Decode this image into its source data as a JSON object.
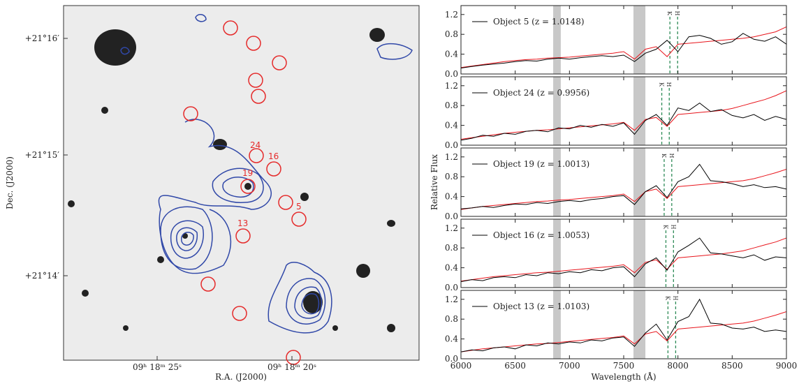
{
  "chart_data": [
    {
      "type": "image",
      "xlabel": "R.A. (J2000)",
      "ylabel": "Dec. (J2000)",
      "xtick_labels": [
        "09ʰ 18ᵐ 25ˢ",
        "09ʰ 18ᵐ 20ˢ"
      ],
      "ytick_labels": [
        "+21°16′",
        "+21°15′",
        "+21°14′"
      ],
      "object_labels": [
        "24",
        "16",
        "19",
        "5",
        "13"
      ]
    },
    {
      "type": "line",
      "ylim": [
        0,
        1.38
      ],
      "yticks": [
        {
          "value": 0,
          "label": "0.0"
        },
        0.4,
        0.8,
        1.2
      ],
      "xlim": [
        6000,
        9000
      ],
      "x": [
        6000,
        6100,
        6200,
        6300,
        6400,
        6500,
        6600,
        6700,
        6800,
        6900,
        7000,
        7100,
        7200,
        7300,
        7400,
        7500,
        7600,
        7700,
        7800,
        7900,
        8000,
        8100,
        8200,
        8300,
        8400,
        8500,
        8600,
        8700,
        8800,
        8900,
        9000
      ],
      "shaded_bands": [
        [
          6850,
          6920
        ],
        [
          7590,
          7700
        ]
      ],
      "lines": [
        {
          "label": "K",
          "x": 7926
        },
        {
          "label": "H",
          "x": 7997
        }
      ],
      "series": [
        {
          "name": "Object 5 (z = 1.0148)",
          "color": "#000000",
          "values": [
            0.12,
            0.15,
            0.18,
            0.2,
            0.22,
            0.25,
            0.27,
            0.26,
            0.3,
            0.32,
            0.3,
            0.33,
            0.35,
            0.37,
            0.35,
            0.38,
            0.25,
            0.42,
            0.5,
            0.68,
            0.45,
            0.75,
            0.78,
            0.72,
            0.6,
            0.65,
            0.82,
            0.7,
            0.66,
            0.75,
            0.6
          ]
        },
        {
          "color": "#e8141b",
          "values": [
            0.13,
            0.16,
            0.19,
            0.22,
            0.25,
            0.27,
            0.29,
            0.3,
            0.32,
            0.33,
            0.34,
            0.36,
            0.38,
            0.4,
            0.42,
            0.45,
            0.3,
            0.5,
            0.55,
            0.35,
            0.6,
            0.62,
            0.64,
            0.66,
            0.68,
            0.7,
            0.72,
            0.75,
            0.8,
            0.85,
            0.95
          ]
        }
      ]
    },
    {
      "type": "line",
      "ylim": [
        0,
        1.38
      ],
      "yticks": [
        {
          "value": 0,
          "label": "0.0"
        },
        0.4,
        0.8,
        1.2
      ],
      "xlim": [
        6000,
        9000
      ],
      "x": [
        6000,
        6100,
        6200,
        6300,
        6400,
        6500,
        6600,
        6700,
        6800,
        6900,
        7000,
        7100,
        7200,
        7300,
        7400,
        7500,
        7600,
        7700,
        7800,
        7900,
        8000,
        8100,
        8200,
        8300,
        8400,
        8500,
        8600,
        8700,
        8800,
        8900,
        9000
      ],
      "shaded_bands": [
        [
          6850,
          6920
        ],
        [
          7590,
          7700
        ]
      ],
      "lines": [
        {
          "label": "K",
          "x": 7851
        },
        {
          "label": "H",
          "x": 7920
        }
      ],
      "series": [
        {
          "name": "Object 24 (z = 0.9956)",
          "color": "#000000",
          "values": [
            0.1,
            0.14,
            0.2,
            0.18,
            0.24,
            0.22,
            0.28,
            0.3,
            0.27,
            0.35,
            0.33,
            0.4,
            0.36,
            0.42,
            0.38,
            0.45,
            0.22,
            0.5,
            0.62,
            0.4,
            0.75,
            0.7,
            0.85,
            0.68,
            0.72,
            0.6,
            0.55,
            0.62,
            0.5,
            0.58,
            0.52
          ]
        },
        {
          "color": "#e8141b",
          "values": [
            0.12,
            0.15,
            0.18,
            0.21,
            0.24,
            0.26,
            0.28,
            0.3,
            0.31,
            0.33,
            0.35,
            0.37,
            0.39,
            0.41,
            0.43,
            0.46,
            0.3,
            0.52,
            0.56,
            0.38,
            0.62,
            0.64,
            0.66,
            0.68,
            0.7,
            0.74,
            0.8,
            0.86,
            0.92,
            1.0,
            1.1
          ]
        }
      ]
    },
    {
      "type": "line",
      "ylim": [
        0,
        1.38
      ],
      "yticks": [
        {
          "value": 0,
          "label": "0.0"
        },
        0.4,
        0.8,
        1.2
      ],
      "xlim": [
        6000,
        9000
      ],
      "ylabel": "Relative Flux",
      "x": [
        6000,
        6100,
        6200,
        6300,
        6400,
        6500,
        6600,
        6700,
        6800,
        6900,
        7000,
        7100,
        7200,
        7300,
        7400,
        7500,
        7600,
        7700,
        7800,
        7900,
        8000,
        8100,
        8200,
        8300,
        8400,
        8500,
        8600,
        8700,
        8800,
        8900,
        9000
      ],
      "shaded_bands": [
        [
          6850,
          6920
        ],
        [
          7590,
          7700
        ]
      ],
      "lines": [
        {
          "label": "K",
          "x": 7873
        },
        {
          "label": "H",
          "x": 7943
        }
      ],
      "series": [
        {
          "name": "Object 19 (z = 1.0013)",
          "color": "#000000",
          "values": [
            0.15,
            0.17,
            0.2,
            0.18,
            0.22,
            0.25,
            0.24,
            0.28,
            0.26,
            0.3,
            0.32,
            0.3,
            0.34,
            0.36,
            0.4,
            0.42,
            0.24,
            0.5,
            0.62,
            0.38,
            0.7,
            0.8,
            1.05,
            0.72,
            0.7,
            0.66,
            0.6,
            0.64,
            0.58,
            0.6,
            0.55
          ]
        },
        {
          "color": "#e8141b",
          "values": [
            0.14,
            0.17,
            0.2,
            0.22,
            0.24,
            0.26,
            0.28,
            0.3,
            0.31,
            0.33,
            0.34,
            0.36,
            0.38,
            0.4,
            0.42,
            0.45,
            0.3,
            0.5,
            0.55,
            0.36,
            0.6,
            0.62,
            0.64,
            0.66,
            0.68,
            0.7,
            0.72,
            0.76,
            0.82,
            0.88,
            0.95
          ]
        }
      ]
    },
    {
      "type": "line",
      "ylim": [
        0,
        1.38
      ],
      "yticks": [
        {
          "value": 0,
          "label": "0.0"
        },
        0.4,
        0.8,
        1.2
      ],
      "xlim": [
        6000,
        9000
      ],
      "x": [
        6000,
        6100,
        6200,
        6300,
        6400,
        6500,
        6600,
        6700,
        6800,
        6900,
        7000,
        7100,
        7200,
        7300,
        7400,
        7500,
        7600,
        7700,
        7800,
        7900,
        8000,
        8100,
        8200,
        8300,
        8400,
        8500,
        8600,
        8700,
        8800,
        8900,
        9000
      ],
      "shaded_bands": [
        [
          6850,
          6920
        ],
        [
          7590,
          7700
        ]
      ],
      "lines": [
        {
          "label": "K",
          "x": 7889
        },
        {
          "label": "H",
          "x": 7959
        }
      ],
      "series": [
        {
          "name": "Object 16 (z = 1.0053)",
          "color": "#000000",
          "values": [
            0.12,
            0.16,
            0.14,
            0.2,
            0.22,
            0.2,
            0.26,
            0.24,
            0.3,
            0.28,
            0.32,
            0.3,
            0.36,
            0.34,
            0.4,
            0.42,
            0.22,
            0.48,
            0.6,
            0.35,
            0.72,
            0.85,
            1.0,
            0.7,
            0.68,
            0.64,
            0.6,
            0.66,
            0.55,
            0.62,
            0.6
          ]
        },
        {
          "color": "#e8141b",
          "values": [
            0.13,
            0.16,
            0.19,
            0.22,
            0.24,
            0.26,
            0.28,
            0.3,
            0.31,
            0.33,
            0.35,
            0.37,
            0.39,
            0.41,
            0.43,
            0.46,
            0.3,
            0.51,
            0.56,
            0.37,
            0.6,
            0.62,
            0.64,
            0.66,
            0.68,
            0.71,
            0.74,
            0.8,
            0.86,
            0.92,
            1.0
          ]
        }
      ]
    },
    {
      "type": "line",
      "ylim": [
        0,
        1.38
      ],
      "yticks": [
        {
          "value": 0,
          "label": "0.0"
        },
        0.4,
        0.8,
        1.2
      ],
      "xlim": [
        6000,
        9000
      ],
      "xlabel": "Wavelength (Å)",
      "xticks": [
        6000,
        6500,
        7000,
        7500,
        8000,
        8500,
        9000
      ],
      "x": [
        6000,
        6100,
        6200,
        6300,
        6400,
        6500,
        6600,
        6700,
        6800,
        6900,
        7000,
        7100,
        7200,
        7300,
        7400,
        7500,
        7600,
        7700,
        7800,
        7900,
        8000,
        8100,
        8200,
        8300,
        8400,
        8500,
        8600,
        8700,
        8800,
        8900,
        9000
      ],
      "shaded_bands": [
        [
          6850,
          6920
        ],
        [
          7590,
          7700
        ]
      ],
      "lines": [
        {
          "label": "K",
          "x": 7908
        },
        {
          "label": "H",
          "x": 7979
        }
      ],
      "series": [
        {
          "name": "Object 13 (z = 1.0103)",
          "color": "#000000",
          "values": [
            0.14,
            0.18,
            0.16,
            0.22,
            0.24,
            0.2,
            0.28,
            0.26,
            0.32,
            0.3,
            0.34,
            0.32,
            0.38,
            0.36,
            0.42,
            0.44,
            0.25,
            0.52,
            0.7,
            0.38,
            0.75,
            0.85,
            1.2,
            0.72,
            0.7,
            0.62,
            0.6,
            0.64,
            0.55,
            0.58,
            0.55
          ]
        },
        {
          "color": "#e8141b",
          "values": [
            0.14,
            0.17,
            0.2,
            0.22,
            0.24,
            0.26,
            0.28,
            0.3,
            0.31,
            0.33,
            0.35,
            0.37,
            0.39,
            0.41,
            0.43,
            0.46,
            0.3,
            0.5,
            0.55,
            0.36,
            0.6,
            0.62,
            0.64,
            0.66,
            0.68,
            0.7,
            0.72,
            0.76,
            0.82,
            0.88,
            0.95
          ]
        }
      ]
    }
  ]
}
